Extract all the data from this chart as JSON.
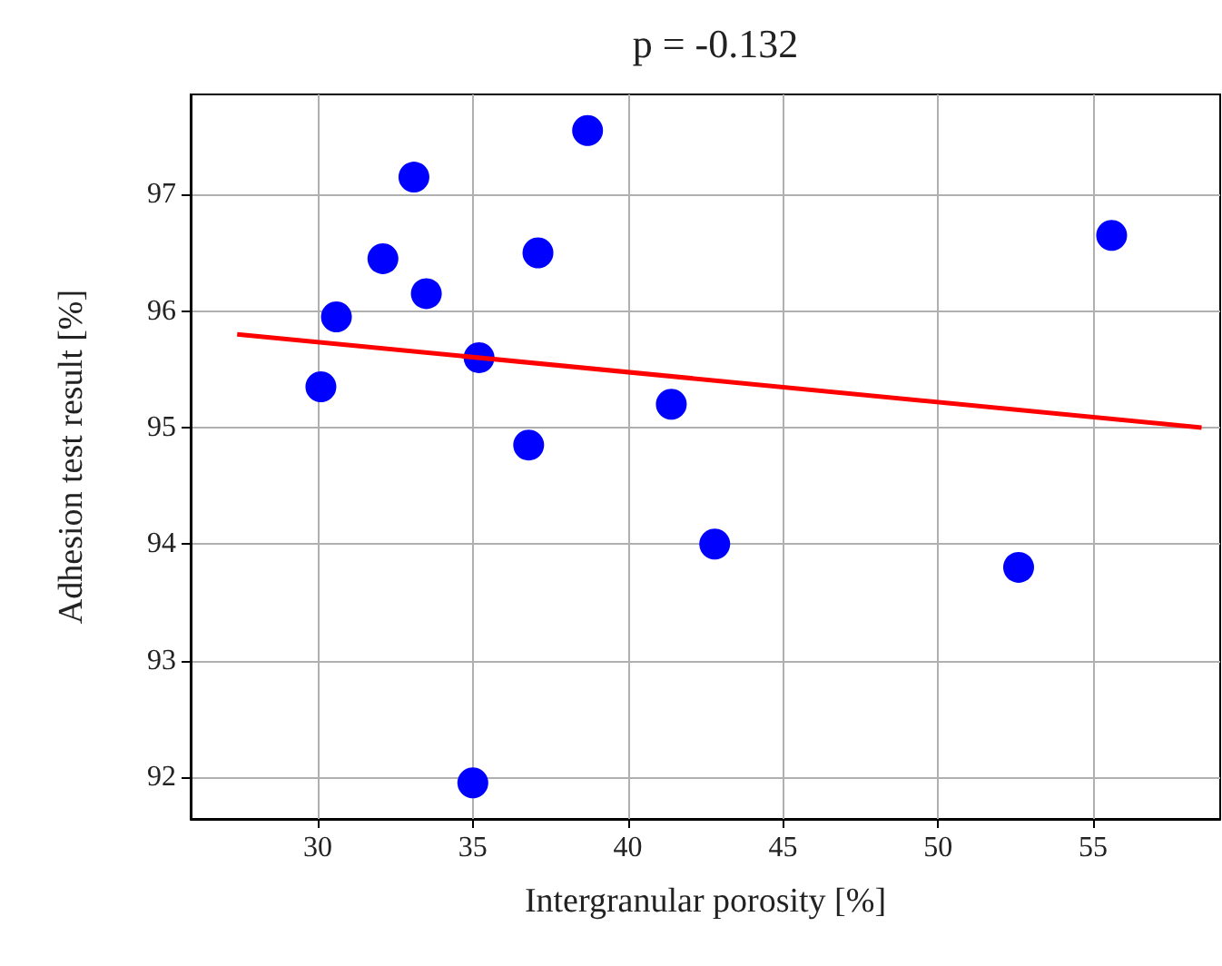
{
  "chart_data": {
    "type": "scatter",
    "title": "p = -0.132",
    "xlabel": "Intergranular porosity [%]",
    "ylabel": "Adhesion test result [%]",
    "xlim": [
      25.9,
      59.1
    ],
    "xticks": [
      30,
      35,
      40,
      45,
      50,
      55
    ],
    "ylim": [
      91.64,
      97.86
    ],
    "yticks": [
      92,
      93,
      94,
      95,
      96,
      97
    ],
    "grid": true,
    "series": [
      {
        "type": "scatter",
        "marker": "circle",
        "color": "#0000ff",
        "x": [
          30.1,
          30.6,
          32.1,
          33.1,
          33.5,
          35.2,
          35.0,
          36.8,
          37.1,
          38.7,
          41.4,
          42.8,
          52.6,
          55.6
        ],
        "values": [
          95.35,
          95.95,
          96.45,
          97.15,
          96.15,
          95.6,
          91.95,
          94.85,
          96.5,
          97.55,
          95.2,
          94.0,
          93.8,
          96.65
        ]
      },
      {
        "type": "line",
        "color": "#ff0000",
        "x": [
          27.4,
          58.5
        ],
        "values": [
          95.8,
          95.0
        ]
      }
    ]
  }
}
